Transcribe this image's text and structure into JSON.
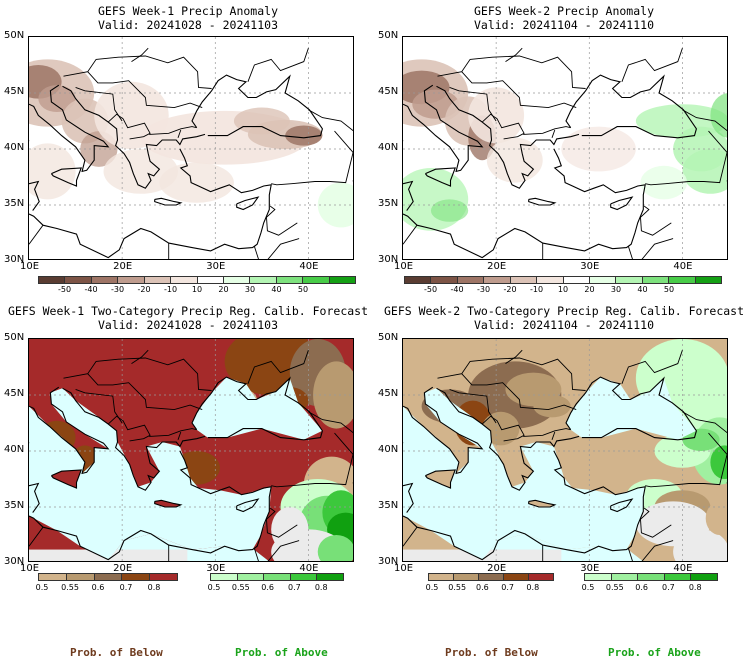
{
  "panels": [
    {
      "title": "GEFS Week-1 Precip Anomaly",
      "valid": "Valid: 20241028 - 20241103"
    },
    {
      "title": "GEFS Week-2 Precip Anomaly",
      "valid": "Valid: 20241104 - 20241110"
    },
    {
      "title": "GEFS Week-1 Two-Category Precip Reg. Calib. Forecast",
      "valid": "Valid: 20241028 - 20241103"
    },
    {
      "title": "GEFS Week-2 Two-Category Precip Reg. Calib. Forecast",
      "valid": "Valid: 20241104 - 20241110"
    }
  ],
  "lat_labels": [
    "50N",
    "45N",
    "40N",
    "35N",
    "30N"
  ],
  "lon_labels": [
    "10E",
    "20E",
    "30E",
    "40E"
  ],
  "anomaly_scale": {
    "labels": [
      "-50",
      "-40",
      "-30",
      "-20",
      "-10",
      "10",
      "20",
      "30",
      "40",
      "50"
    ],
    "colors": [
      "#5a3c32",
      "#7d5446",
      "#9e7566",
      "#bf9c8e",
      "#dcc3b7",
      "#f3e6df",
      "#ffffff",
      "#e6ffe6",
      "#b4f5b4",
      "#7ee27e",
      "#48cc48",
      "#14a014"
    ]
  },
  "prob_below": {
    "labels": [
      "0.5",
      "0.55",
      "0.6",
      "0.7",
      "0.8"
    ],
    "colors": [
      "#d2b48c",
      "#b89a70",
      "#8c6c50",
      "#8b4513",
      "#a52a2a"
    ]
  },
  "prob_above": {
    "labels": [
      "0.5",
      "0.55",
      "0.6",
      "0.7",
      "0.8"
    ],
    "colors": [
      "#ccffcc",
      "#a0f0a0",
      "#78e078",
      "#3cc83c",
      "#10a010"
    ]
  },
  "footer": {
    "below": "Prob. of Below",
    "above": "Prob. of Above"
  },
  "colors": {
    "ocean_prob": "#dcffff",
    "land_dry": "#ebebeb",
    "below_strong": "#a52a2a",
    "below_med": "#8b4513",
    "below_weak": "#d2b48c",
    "above": "#78e078"
  }
}
